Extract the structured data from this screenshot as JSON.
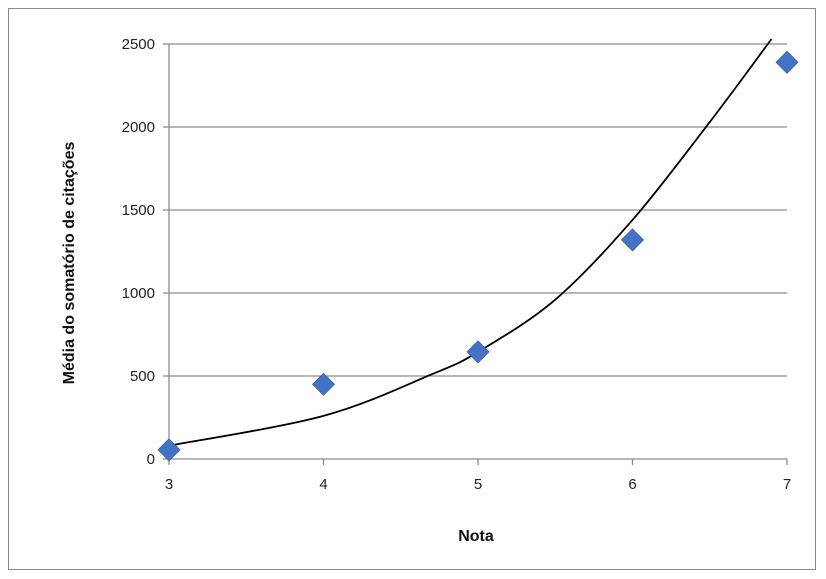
{
  "chart_data": {
    "type": "scatter",
    "title": "",
    "xlabel": "Nota",
    "ylabel": "Média do somatório de citações",
    "xlim": [
      3,
      7
    ],
    "ylim": [
      0,
      2500
    ],
    "x_ticks": [
      "3",
      "4",
      "5",
      "6",
      "7"
    ],
    "y_ticks": [
      "0",
      "500",
      "1000",
      "1500",
      "2000",
      "2500"
    ],
    "grid": "horizontal",
    "legend": "none",
    "series": [
      {
        "marker": "diamond",
        "color": "#4472C4",
        "points": [
          {
            "x": 3,
            "y": 55
          },
          {
            "x": 4,
            "y": 450
          },
          {
            "x": 5,
            "y": 645
          },
          {
            "x": 6,
            "y": 1320
          },
          {
            "x": 7,
            "y": 2390
          }
        ]
      }
    ],
    "trendline": {
      "type": "exponential",
      "color": "#000000",
      "points": [
        {
          "x": 3,
          "y": 80
        },
        {
          "x": 4,
          "y": 260
        },
        {
          "x": 4.7,
          "y": 510
        },
        {
          "x": 5,
          "y": 645
        },
        {
          "x": 5.5,
          "y": 960
        },
        {
          "x": 6,
          "y": 1440
        },
        {
          "x": 6.5,
          "y": 2030
        },
        {
          "x": 6.9,
          "y": 2530
        }
      ]
    }
  }
}
